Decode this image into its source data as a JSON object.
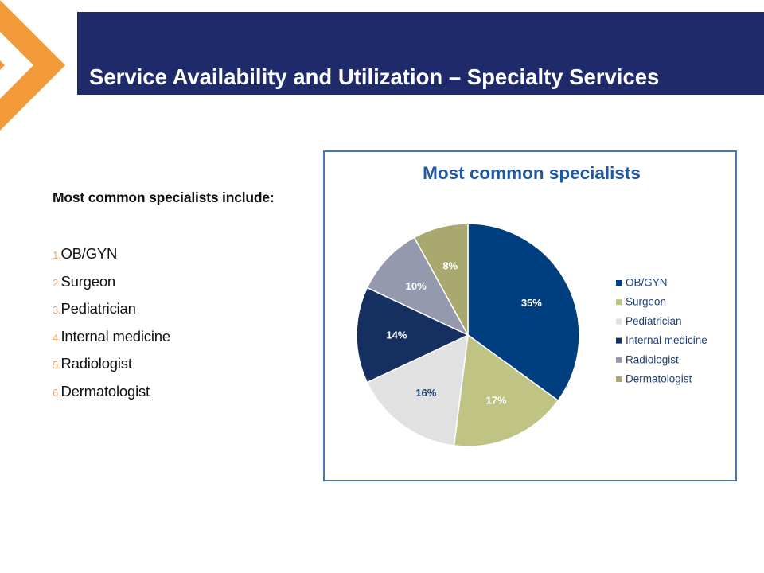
{
  "slide": {
    "title": "Service Availability and Utilization – Specialty Services",
    "intro": "Most common specialists include:",
    "list": [
      {
        "num": "1.",
        "text": "OB/GYN"
      },
      {
        "num": "2.",
        "text": "Surgeon"
      },
      {
        "num": "3.",
        "text": "Pediatrician"
      },
      {
        "num": "4.",
        "text": "Internal medicine"
      },
      {
        "num": "5.",
        "text": "Radiologist"
      },
      {
        "num": "6.",
        "text": "Dermatologist"
      }
    ]
  },
  "colors": {
    "title_bar": "#1f2a6b",
    "accent_orange": "#f5a25d",
    "chart_border": "#4a78b5"
  },
  "chart_data": {
    "type": "pie",
    "title": "Most common specialists",
    "legend_position": "right",
    "slices": [
      {
        "label": "OB/GYN",
        "value": 35,
        "display": "35%",
        "color": "#003f7f",
        "label_color": "#ffffff"
      },
      {
        "label": "Surgeon",
        "value": 17,
        "display": "17%",
        "color": "#bfc383",
        "label_color": "#ffffff"
      },
      {
        "label": "Pediatrician",
        "value": 16,
        "display": "16%",
        "color": "#e1e1e1",
        "label_color": "#1f3f7a"
      },
      {
        "label": "Internal medicine",
        "value": 14,
        "display": "14%",
        "color": "#142f60",
        "label_color": "#ffffff"
      },
      {
        "label": "Radiologist",
        "value": 10,
        "display": "10%",
        "color": "#9499ad",
        "label_color": "#ffffff"
      },
      {
        "label": "Dermatologist",
        "value": 8,
        "display": "8%",
        "color": "#a9a96f",
        "label_color": "#ffffff"
      }
    ]
  }
}
